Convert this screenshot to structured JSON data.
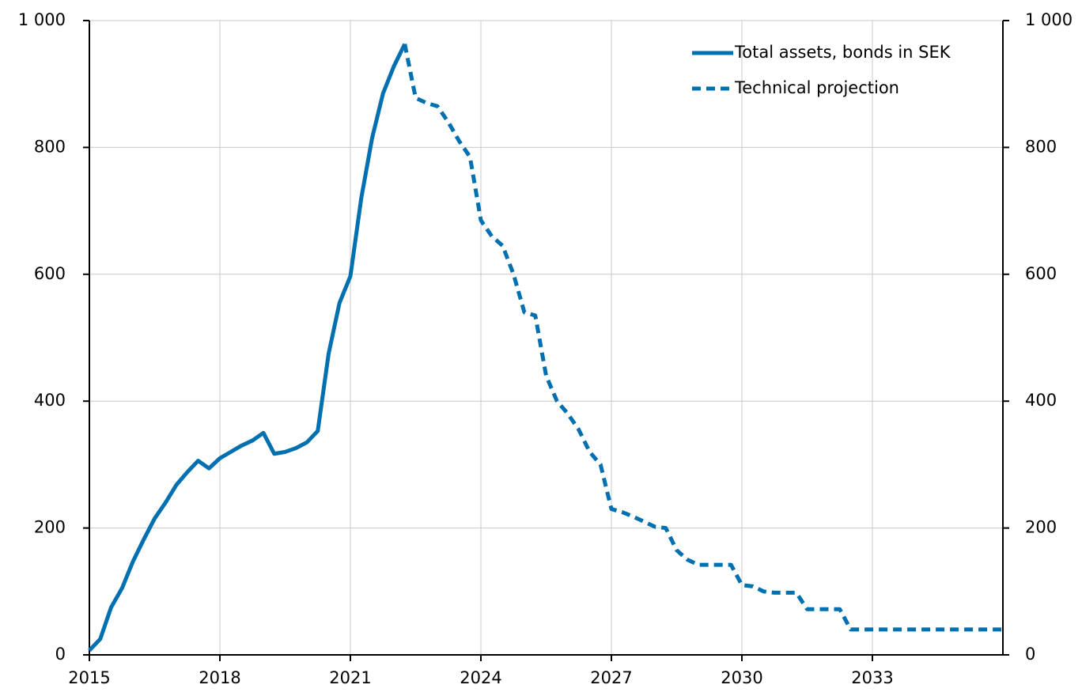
{
  "chart_data": {
    "type": "line",
    "x": [
      2015,
      2015.25,
      2015.5,
      2015.75,
      2016,
      2016.25,
      2016.5,
      2016.75,
      2017,
      2017.25,
      2017.5,
      2017.75,
      2018,
      2018.25,
      2018.5,
      2018.75,
      2019,
      2019.25,
      2019.5,
      2019.75,
      2020,
      2020.25,
      2020.5,
      2020.75,
      2021,
      2021.25,
      2021.5,
      2021.75,
      2022,
      2022.25,
      2022.5,
      2022.75,
      2023,
      2023.25,
      2023.5,
      2023.75,
      2024,
      2024.25,
      2024.5,
      2024.75,
      2025,
      2025.25,
      2025.5,
      2025.75,
      2026,
      2026.25,
      2026.5,
      2026.75,
      2027,
      2027.25,
      2027.5,
      2027.75,
      2028,
      2028.25,
      2028.5,
      2028.75,
      2029,
      2029.25,
      2029.5,
      2029.75,
      2030,
      2030.25,
      2030.5,
      2030.75,
      2031,
      2031.25,
      2031.5,
      2031.75,
      2032,
      2032.25,
      2032.5,
      2032.75,
      2033,
      2033.25,
      2033.5,
      2033.75,
      2034,
      2034.25,
      2034.5,
      2034.75,
      2035,
      2035.25,
      2035.5,
      2035.75,
      2036
    ],
    "series": [
      {
        "name": "Total assets, bonds in SEK",
        "color": "#0070b0",
        "line_style": "solid",
        "values": [
          7,
          25,
          75,
          105,
          147,
          182,
          215,
          240,
          268,
          288,
          306,
          294,
          310,
          320,
          330,
          338,
          350,
          317,
          320,
          326,
          335,
          353,
          475,
          555,
          597,
          720,
          815,
          885,
          928,
          963,
          null,
          null,
          null,
          null,
          null,
          null,
          null,
          null,
          null,
          null,
          null,
          null,
          null,
          null,
          null,
          null,
          null,
          null,
          null,
          null,
          null,
          null,
          null,
          null,
          null,
          null,
          null,
          null,
          null,
          null,
          null,
          null,
          null,
          null,
          null,
          null,
          null,
          null,
          null,
          null,
          null,
          null,
          null,
          null,
          null,
          null,
          null,
          null,
          null,
          null,
          null,
          null,
          null,
          null,
          null
        ]
      },
      {
        "name": "Technical projection",
        "color": "#0070b0",
        "line_style": "dashed",
        "values": [
          null,
          null,
          null,
          null,
          null,
          null,
          null,
          null,
          null,
          null,
          null,
          null,
          null,
          null,
          null,
          null,
          null,
          null,
          null,
          null,
          null,
          null,
          null,
          null,
          null,
          null,
          null,
          null,
          null,
          963,
          878,
          870,
          865,
          840,
          810,
          785,
          685,
          660,
          645,
          600,
          540,
          535,
          440,
          400,
          380,
          355,
          320,
          300,
          230,
          225,
          218,
          210,
          202,
          200,
          165,
          150,
          142,
          142,
          142,
          142,
          110,
          108,
          100,
          98,
          98,
          98,
          72,
          72,
          72,
          72,
          40,
          40,
          40,
          40,
          40,
          40,
          40,
          40,
          40,
          40,
          40,
          40,
          40,
          40,
          40
        ]
      }
    ],
    "xlim": [
      2015,
      2036
    ],
    "xticks": [
      2015,
      2018,
      2021,
      2024,
      2027,
      2030,
      2033
    ],
    "ylim": [
      0,
      1000
    ],
    "yticks": [
      0,
      200,
      400,
      600,
      {
        "value": 800,
        "label": "800"
      },
      {
        "value": 1000,
        "label": "1 000"
      }
    ],
    "y2lim": [
      0,
      1000
    ],
    "y2ticks": [
      0,
      200,
      400,
      600,
      {
        "value": 800,
        "label": "800"
      },
      {
        "value": 1000,
        "label": "1 000"
      }
    ],
    "grid": true,
    "legend": "top-right"
  }
}
